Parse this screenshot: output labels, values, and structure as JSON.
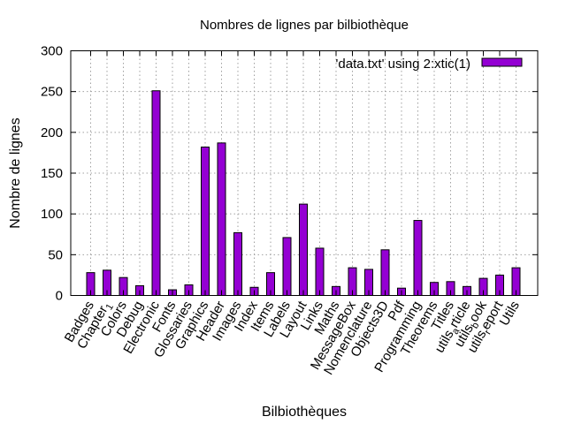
{
  "chart_data": {
    "type": "bar",
    "title": "Nombres de lignes par bilbiothèque",
    "xlabel": "Bilbiothèques",
    "ylabel": "Nombre de lignes",
    "ylim": [
      0,
      300
    ],
    "yticks": [
      0,
      50,
      100,
      150,
      200,
      250,
      300
    ],
    "grid": true,
    "legend": {
      "placement": "top-right",
      "label": "'data.txt' using 2:xtic(1)"
    },
    "colors": {
      "bar": "#9400d3",
      "bar_stroke": "#000000",
      "grid": "#a0a0a0"
    },
    "categories": [
      "Badges",
      "Chapter_1",
      "Colors",
      "Debug",
      "Electronic",
      "Fonts",
      "Glossaries",
      "Graphics",
      "Header",
      "Images",
      "Index",
      "Items",
      "Labels",
      "Layout",
      "Links",
      "Maths",
      "MessageBox",
      "Nomenclature",
      "Objects3D",
      "Pdf",
      "Programming",
      "Theorems",
      "Titles",
      "utils_article",
      "utils_book",
      "utils_report",
      "Utils"
    ],
    "values": [
      28,
      31,
      22,
      12,
      251,
      7,
      13,
      182,
      187,
      77,
      10,
      28,
      71,
      112,
      58,
      11,
      34,
      32,
      56,
      9,
      92,
      16,
      17,
      11,
      21,
      25,
      34
    ]
  }
}
